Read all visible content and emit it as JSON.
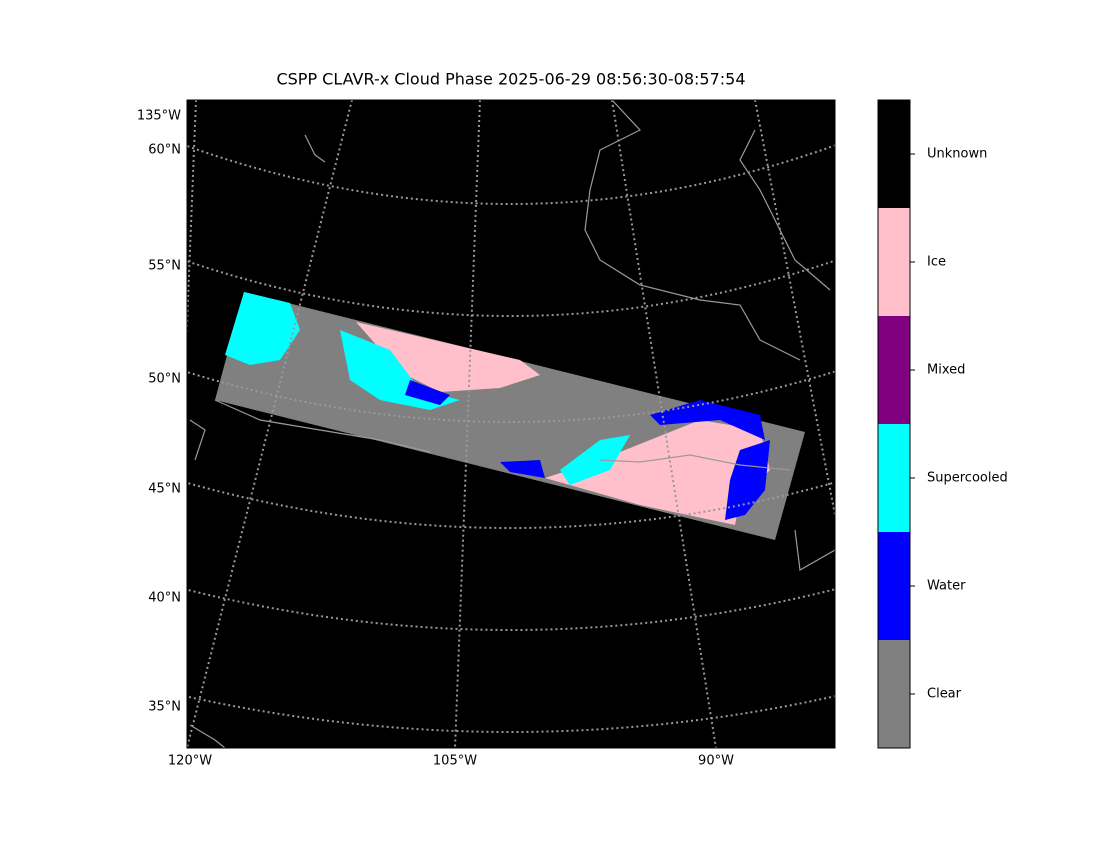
{
  "title": "CSPP CLAVR-x Cloud Phase 2025-06-29 08:56:30-08:57:54",
  "lat_labels": [
    "135°W",
    "60°N",
    "55°N",
    "50°N",
    "45°N",
    "40°N",
    "35°N"
  ],
  "lon_labels": [
    "120°W",
    "105°W",
    "90°W"
  ],
  "legend": {
    "classes": [
      {
        "label": "Clear",
        "color": "#808080"
      },
      {
        "label": "Water",
        "color": "#0000ff"
      },
      {
        "label": "Supercooled",
        "color": "#00ffff"
      },
      {
        "label": "Mixed",
        "color": "#800080"
      },
      {
        "label": "Ice",
        "color": "#ffc0cb"
      },
      {
        "label": "Unknown",
        "color": "#000000"
      }
    ]
  }
}
